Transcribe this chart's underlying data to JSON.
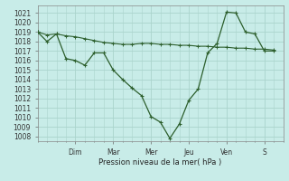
{
  "xlabel": "Pression niveau de la mer( hPa )",
  "bg_color": "#c8ece8",
  "grid_color": "#aad4cc",
  "line_color": "#2d5f2d",
  "ylim": [
    1007.5,
    1021.8
  ],
  "yticks": [
    1008,
    1009,
    1010,
    1011,
    1012,
    1013,
    1014,
    1015,
    1016,
    1017,
    1018,
    1019,
    1020,
    1021
  ],
  "day_labels": [
    "Dim",
    "Mar",
    "Mer",
    "Jeu",
    "Ven",
    "S"
  ],
  "day_positions": [
    2,
    4,
    6,
    8,
    10,
    12
  ],
  "xlim": [
    0,
    13
  ],
  "line1_x": [
    0.0,
    0.5,
    1.0,
    1.5,
    2.0,
    2.5,
    3.0,
    3.5,
    4.0,
    4.5,
    5.0,
    5.5,
    6.0,
    6.5,
    7.0,
    7.5,
    8.0,
    8.5,
    9.0,
    9.5,
    10.0,
    10.5,
    11.0,
    11.5,
    12.0,
    12.5
  ],
  "line1_y": [
    1019.0,
    1018.7,
    1018.8,
    1018.6,
    1018.5,
    1018.3,
    1018.1,
    1017.9,
    1017.8,
    1017.7,
    1017.7,
    1017.8,
    1017.8,
    1017.7,
    1017.7,
    1017.6,
    1017.6,
    1017.5,
    1017.5,
    1017.4,
    1017.4,
    1017.3,
    1017.3,
    1017.2,
    1017.2,
    1017.1
  ],
  "line2_x": [
    0.0,
    0.5,
    1.0,
    1.5,
    2.0,
    2.5,
    3.0,
    3.5,
    4.0,
    4.5,
    5.0,
    5.5,
    6.0,
    6.5,
    7.0,
    7.5,
    8.0,
    8.5,
    9.0,
    9.5,
    10.0,
    10.5,
    11.0,
    11.5,
    12.0,
    12.5
  ],
  "line2_y": [
    1019.0,
    1018.0,
    1018.8,
    1016.2,
    1016.0,
    1015.5,
    1016.8,
    1016.8,
    1015.0,
    1014.0,
    1013.1,
    1012.3,
    1010.1,
    1009.5,
    1007.8,
    1009.3,
    1011.8,
    1013.0,
    1016.8,
    1017.8,
    1021.1,
    1021.0,
    1019.0,
    1018.8,
    1017.0,
    1017.0
  ]
}
